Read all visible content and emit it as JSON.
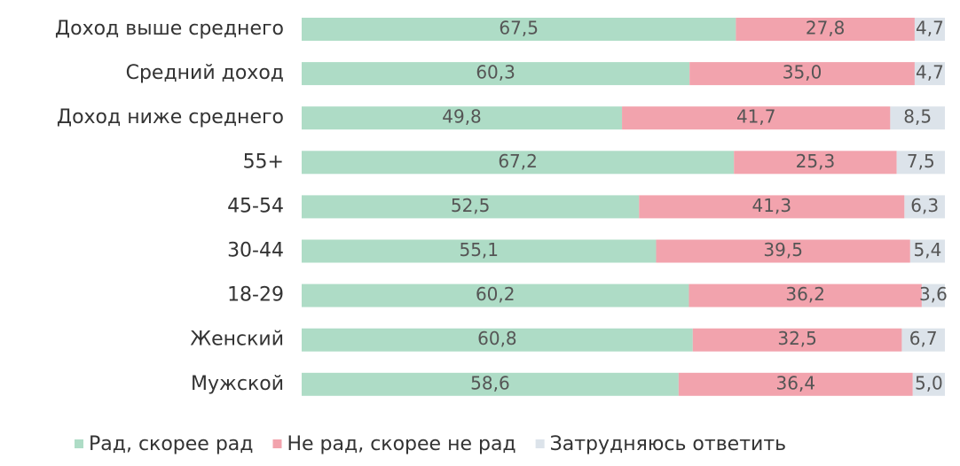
{
  "chart_data": {
    "type": "stacked-barh",
    "categories": [
      "Доход выше среднего",
      "Средний доход",
      "Доход ниже среднего",
      "55+",
      "45-54",
      "30-44",
      "18-29",
      "Женский",
      "Мужской"
    ],
    "series": [
      {
        "name": "Рад, скорее рад",
        "color": "#aedcc6",
        "values": [
          67.5,
          60.3,
          49.8,
          67.2,
          52.5,
          55.1,
          60.2,
          60.8,
          58.6
        ],
        "value_labels": [
          "67,5",
          "60,3",
          "49,8",
          "67,2",
          "52,5",
          "55,1",
          "60,2",
          "60,8",
          "58,6"
        ]
      },
      {
        "name": "Не рад, скорее не рад",
        "color": "#f2a3ad",
        "values": [
          27.8,
          35.0,
          41.7,
          25.3,
          41.3,
          39.5,
          36.2,
          32.5,
          36.4
        ],
        "value_labels": [
          "27,8",
          "35,0",
          "41,7",
          "25,3",
          "41,3",
          "39,5",
          "36,2",
          "32,5",
          "36,4"
        ]
      },
      {
        "name": "Затрудняюсь ответить",
        "color": "#dce3ea",
        "values": [
          4.7,
          4.7,
          8.5,
          7.5,
          6.3,
          5.4,
          3.6,
          6.7,
          5.0
        ],
        "value_labels": [
          "4,7",
          "4,7",
          "8,5",
          "7,5",
          "6,3",
          "5,4",
          "3,6",
          "6,7",
          "5,0"
        ]
      }
    ]
  }
}
